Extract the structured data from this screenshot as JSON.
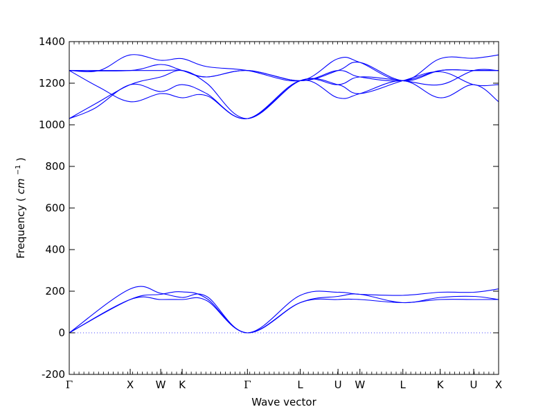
{
  "chart_data": {
    "type": "line",
    "title": "",
    "xlabel": "Wave vector",
    "ylabel": "Frequency (cm⁻¹)",
    "ylabel_text": "Frequency",
    "ylabel_unit_base": "cm",
    "ylabel_unit_exp": "−1",
    "ylim": [
      -200,
      1400
    ],
    "yticks": [
      -200,
      0,
      200,
      400,
      600,
      800,
      1000,
      1200,
      1400
    ],
    "xlim": [
      0,
      100
    ],
    "high_symbol_points": [
      {
        "label": "Γ",
        "x": 0
      },
      {
        "label": "X",
        "x": 14.2
      },
      {
        "label": "W",
        "x": 21.3
      },
      {
        "label": "K",
        "x": 26.3
      },
      {
        "label": "Γ",
        "x": 41.5
      },
      {
        "label": "L",
        "x": 53.8
      },
      {
        "label": "U",
        "x": 62.6
      },
      {
        "label": "W",
        "x": 67.7
      },
      {
        "label": "L",
        "x": 77.7
      },
      {
        "label": "K",
        "x": 86.4
      },
      {
        "label": "U",
        "x": 94.2
      },
      {
        "label": "X",
        "x": 100
      }
    ],
    "zero_line": {
      "y": 0,
      "style": "dotted",
      "color": "#4444ff"
    },
    "line_color": "#0000ff",
    "grid": false,
    "series": [
      {
        "values": [
          [
            0,
            1261
          ],
          [
            14.2,
            1261
          ],
          [
            21.3,
            1290
          ],
          [
            26.3,
            1261
          ],
          [
            32,
            1230
          ],
          [
            41.5,
            1261
          ],
          [
            53.8,
            1212
          ],
          [
            62.6,
            1261
          ],
          [
            67.7,
            1300
          ],
          [
            77.7,
            1212
          ],
          [
            86.4,
            1261
          ],
          [
            94.2,
            1261
          ],
          [
            100,
            1261
          ]
        ]
      },
      {
        "values": [
          [
            0,
            1261
          ],
          [
            14.2,
            1261
          ],
          [
            21.3,
            1261
          ],
          [
            26.3,
            1261
          ],
          [
            32,
            1230
          ],
          [
            41.5,
            1261
          ],
          [
            53.8,
            1212
          ],
          [
            62.6,
            1261
          ],
          [
            67.7,
            1230
          ],
          [
            77.7,
            1212
          ],
          [
            86.4,
            1261
          ],
          [
            94.2,
            1261
          ],
          [
            100,
            1261
          ]
        ]
      },
      {
        "values": [
          [
            0,
            1261
          ],
          [
            7,
            1261
          ],
          [
            14.2,
            1336
          ],
          [
            21.3,
            1310
          ],
          [
            26.3,
            1318
          ],
          [
            32,
            1280
          ],
          [
            41.5,
            1261
          ],
          [
            53.8,
            1212
          ],
          [
            62.6,
            1318
          ],
          [
            67.7,
            1300
          ],
          [
            77.7,
            1212
          ],
          [
            86.4,
            1318
          ],
          [
            94.2,
            1320
          ],
          [
            100,
            1336
          ]
        ]
      },
      {
        "values": [
          [
            0,
            1030
          ],
          [
            6,
            1100
          ],
          [
            14.2,
            1193
          ],
          [
            21.3,
            1230
          ],
          [
            26.3,
            1261
          ],
          [
            32,
            1200
          ],
          [
            41.5,
            1030
          ],
          [
            53.8,
            1212
          ],
          [
            62.6,
            1193
          ],
          [
            67.7,
            1230
          ],
          [
            77.7,
            1212
          ],
          [
            86.4,
            1193
          ],
          [
            94.2,
            1261
          ],
          [
            100,
            1261
          ]
        ]
      },
      {
        "values": [
          [
            0,
            1030
          ],
          [
            6,
            1080
          ],
          [
            14.2,
            1193
          ],
          [
            21.3,
            1160
          ],
          [
            26.3,
            1193
          ],
          [
            32,
            1150
          ],
          [
            41.5,
            1030
          ],
          [
            53.8,
            1212
          ],
          [
            62.6,
            1193
          ],
          [
            67.7,
            1150
          ],
          [
            77.7,
            1212
          ],
          [
            86.4,
            1255
          ],
          [
            94.2,
            1193
          ],
          [
            100,
            1193
          ]
        ]
      },
      {
        "values": [
          [
            0,
            1261
          ],
          [
            7,
            1180
          ],
          [
            14.2,
            1111
          ],
          [
            21.3,
            1150
          ],
          [
            26.3,
            1130
          ],
          [
            32,
            1140
          ],
          [
            41.5,
            1030
          ],
          [
            53.8,
            1212
          ],
          [
            62.6,
            1130
          ],
          [
            67.7,
            1150
          ],
          [
            77.7,
            1212
          ],
          [
            86.4,
            1130
          ],
          [
            94.2,
            1193
          ],
          [
            100,
            1111
          ]
        ]
      },
      {
        "values": [
          [
            0,
            0
          ],
          [
            14.2,
            211
          ],
          [
            21.3,
            190
          ],
          [
            26.3,
            170
          ],
          [
            32,
            175
          ],
          [
            41.5,
            0
          ],
          [
            53.8,
            180
          ],
          [
            62.6,
            195
          ],
          [
            67.7,
            185
          ],
          [
            77.7,
            180
          ],
          [
            86.4,
            195
          ],
          [
            94.2,
            195
          ],
          [
            100,
            211
          ]
        ]
      },
      {
        "values": [
          [
            0,
            0
          ],
          [
            14.2,
            160
          ],
          [
            21.3,
            185
          ],
          [
            26.3,
            197
          ],
          [
            32,
            165
          ],
          [
            41.5,
            0
          ],
          [
            53.8,
            145
          ],
          [
            62.6,
            175
          ],
          [
            67.7,
            185
          ],
          [
            77.7,
            145
          ],
          [
            86.4,
            170
          ],
          [
            94.2,
            175
          ],
          [
            100,
            160
          ]
        ]
      },
      {
        "values": [
          [
            0,
            0
          ],
          [
            14.2,
            160
          ],
          [
            21.3,
            160
          ],
          [
            26.3,
            160
          ],
          [
            32,
            155
          ],
          [
            41.5,
            0
          ],
          [
            53.8,
            145
          ],
          [
            62.6,
            160
          ],
          [
            67.7,
            160
          ],
          [
            77.7,
            145
          ],
          [
            86.4,
            160
          ],
          [
            94.2,
            160
          ],
          [
            100,
            160
          ]
        ]
      }
    ]
  }
}
